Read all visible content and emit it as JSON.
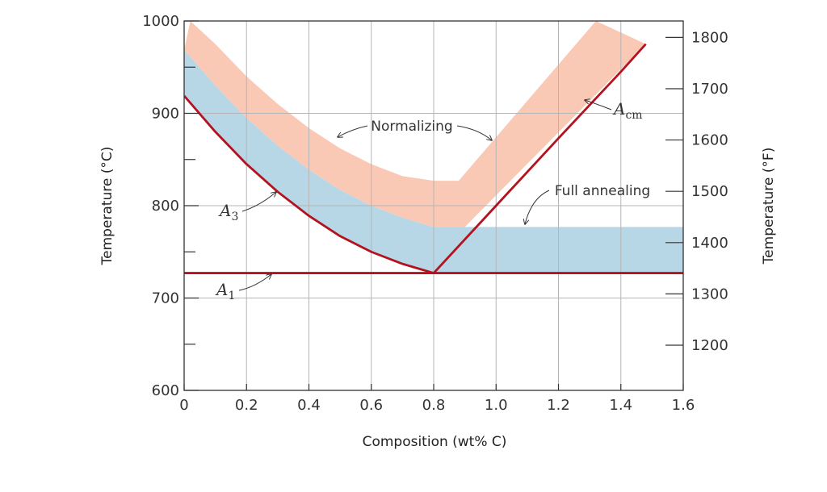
{
  "chart_data": {
    "type": "area",
    "xlabel": "Composition (wt% C)",
    "ylabel_left": "Temperature (°C)",
    "ylabel_right": "Temperature (°F)",
    "xlim": [
      0,
      1.6
    ],
    "ylim_c": [
      600,
      1000
    ],
    "x_ticks": [
      0,
      0.2,
      0.4,
      0.6,
      0.8,
      1.0,
      1.2,
      1.4,
      1.6
    ],
    "x_tick_labels": [
      "0",
      "0.2",
      "0.4",
      "0.6",
      "0.8",
      "1.0",
      "1.2",
      "1.4",
      "1.6"
    ],
    "y_ticks_c": [
      600,
      700,
      800,
      900,
      1000
    ],
    "y_tick_labels_c": [
      "600",
      "700",
      "800",
      "900",
      "1000"
    ],
    "y_ticks_f": [
      1200,
      1300,
      1400,
      1500,
      1600,
      1700,
      1800
    ],
    "y_tick_labels_f": [
      "1200",
      "1300",
      "1400",
      "1500",
      "1600",
      "1700",
      "1800"
    ],
    "grid": true,
    "series": [
      {
        "name": "A1",
        "label_main": "A",
        "label_sub": "1",
        "type": "line",
        "x": [
          0,
          1.6
        ],
        "y": [
          727,
          727
        ]
      },
      {
        "name": "A3",
        "label_main": "A",
        "label_sub": "3",
        "type": "line",
        "x": [
          0,
          0.1,
          0.2,
          0.3,
          0.4,
          0.5,
          0.6,
          0.7,
          0.8
        ],
        "y": [
          919,
          880,
          845,
          815,
          789,
          767,
          750,
          737,
          727
        ]
      },
      {
        "name": "Acm",
        "label_main": "A",
        "label_sub": "cm",
        "type": "line",
        "x": [
          0.8,
          1.0,
          1.2,
          1.4,
          1.48
        ],
        "y": [
          727,
          800,
          873,
          945,
          975
        ]
      }
    ],
    "regions": [
      {
        "name": "Full annealing",
        "lower": {
          "x": [
            0,
            0.1,
            0.2,
            0.3,
            0.4,
            0.5,
            0.6,
            0.7,
            0.8,
            1.6
          ],
          "y": [
            919,
            880,
            845,
            815,
            789,
            767,
            750,
            737,
            727,
            727
          ]
        },
        "upper": {
          "x": [
            0,
            0.1,
            0.2,
            0.3,
            0.4,
            0.5,
            0.6,
            0.7,
            0.8,
            0.9,
            1.6
          ],
          "y": [
            969,
            930,
            895,
            865,
            839,
            817,
            800,
            787,
            777,
            777,
            777
          ]
        },
        "color": "#b7d7e6"
      },
      {
        "name": "Normalizing",
        "lower": {
          "x": [
            0,
            0.1,
            0.2,
            0.3,
            0.4,
            0.5,
            0.6,
            0.7,
            0.8,
            0.9,
            1.48
          ],
          "y": [
            969,
            930,
            895,
            865,
            839,
            817,
            800,
            787,
            777,
            777,
            975
          ]
        },
        "upper": {
          "x": [
            0.02,
            0.1,
            0.2,
            0.3,
            0.4,
            0.5,
            0.6,
            0.7,
            0.8,
            0.88,
            1.32
          ],
          "y": [
            1000,
            975,
            940,
            910,
            884,
            862,
            845,
            832,
            827,
            827,
            1000
          ]
        },
        "color": "#f9c9b6"
      }
    ],
    "annotations": [
      {
        "text": "Normalizing"
      },
      {
        "text": "Full annealing"
      }
    ],
    "colors": {
      "line": "#b3121e",
      "full_annealing": "#b7d7e6",
      "normalizing": "#f9c9b6",
      "grid": "#b5b5b5",
      "axis": "#333333"
    }
  }
}
